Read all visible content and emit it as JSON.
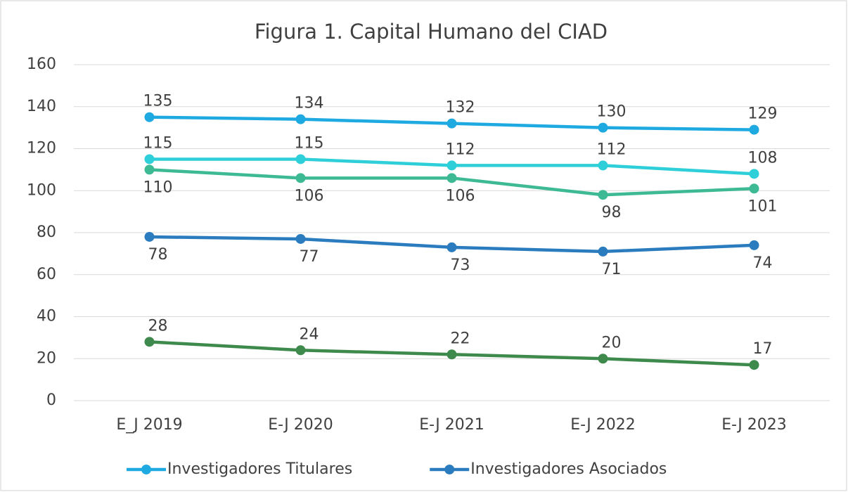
{
  "chart_data": {
    "type": "line",
    "title": "Figura 1. Capital Humano del CIAD",
    "categories": [
      "E_J 2019",
      "E-J 2020",
      "E-J 2021",
      "E-J 2022",
      "E-J 2023"
    ],
    "series": [
      {
        "name": "Investigadores Titulares",
        "color": "#1eaae1",
        "values": [
          135,
          134,
          132,
          130,
          129
        ]
      },
      {
        "name": "Investigadores Asociados",
        "color": "#2b7bbf",
        "values": [
          78,
          77,
          73,
          71,
          74
        ]
      },
      {
        "color": "#2ecfd8",
        "values": [
          115,
          115,
          112,
          112,
          108
        ]
      },
      {
        "color": "#3dba94",
        "values": [
          110,
          106,
          106,
          98,
          101
        ]
      },
      {
        "color": "#3d8a4c",
        "values": [
          28,
          24,
          22,
          20,
          17
        ]
      }
    ],
    "ylim": [
      0,
      160
    ],
    "yticks": [
      0,
      20,
      40,
      60,
      80,
      100,
      120,
      140,
      160
    ],
    "grid": true,
    "legend": "bottom"
  }
}
